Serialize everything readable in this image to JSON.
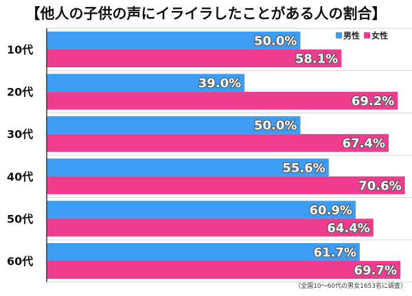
{
  "chart_data": {
    "type": "bar",
    "orientation": "horizontal",
    "title": "【他人の子供の声にイライラしたことがある人の割合】",
    "categories": [
      "10代",
      "20代",
      "30代",
      "40代",
      "50代",
      "60代"
    ],
    "series": [
      {
        "name": "男性",
        "color": "#3d9cf4",
        "values": [
          50.0,
          39.0,
          50.0,
          55.6,
          60.9,
          61.7
        ],
        "labels": [
          "50.0%",
          "39.0%",
          "50.0%",
          "55.6%",
          "60.9%",
          "61.7%"
        ]
      },
      {
        "name": "女性",
        "color": "#f03c8e",
        "values": [
          58.1,
          69.2,
          67.4,
          70.6,
          64.4,
          69.7
        ],
        "labels": [
          "58.1%",
          "69.2%",
          "67.4%",
          "70.6%",
          "64.4%",
          "69.7%"
        ]
      }
    ],
    "xlim": [
      0,
      72
    ],
    "grid": true,
    "legend_position": "top-right",
    "note": "（全国10～60代の男女1653名に調査）"
  }
}
